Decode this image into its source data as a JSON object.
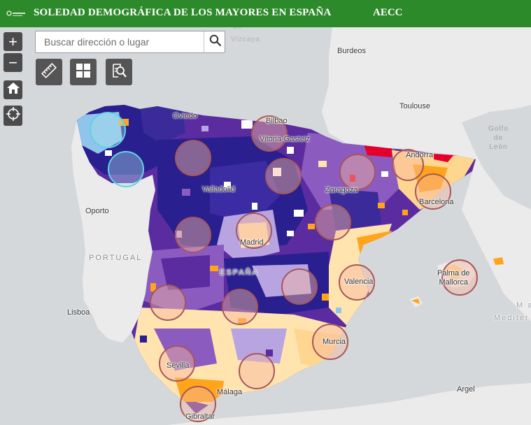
{
  "header": {
    "title": "SOLEDAD DEMOGRÁFICA DE LOS MAYORES EN ESPAÑA",
    "org": "AECC",
    "background_color": "#2d8a2a"
  },
  "controls": {
    "zoom_in": "+",
    "zoom_out": "−",
    "home_icon": "home-icon",
    "locate_icon": "crosshair-icon"
  },
  "search": {
    "placeholder": "Buscar dirección o lugar",
    "value": "",
    "icon": "search-icon"
  },
  "widgets": [
    {
      "name": "measure-button",
      "icon": "ruler-icon"
    },
    {
      "name": "layers-button",
      "icon": "grid-icon"
    },
    {
      "name": "query-button",
      "icon": "search-document-icon"
    }
  ],
  "map": {
    "labels": {
      "biscay_top": "de",
      "biscay": "Vizcaya",
      "burdeos": "Burdeos",
      "toulouse": "Toulouse",
      "golfo_1": "Golfo",
      "golfo_2": "de",
      "golfo_3": "León",
      "oviedo": "Oviedo",
      "bilbao": "Bilbao",
      "vitoria": "Vitoria-Gasteiz",
      "andorra": "Andorra",
      "valladolid": "Valladolid",
      "zaragoza": "Zaragoza",
      "barcelona": "Barcelona",
      "oporto": "Oporto",
      "portugal": "PORTUGAL",
      "madrid": "Madrid",
      "espana": "ESPAÑA",
      "palma_1": "Palma de",
      "palma_2": "Mallorca",
      "valencia": "Valencia",
      "lisboa": "Lisboa",
      "mar_1": "M a",
      "mar_2": "Mediter",
      "murcia": "Murcia",
      "sevilla": "Sevilla",
      "malaga": "Málaga",
      "gibraltar": "Gibraltar",
      "argel": "Argel"
    },
    "legend_colors": {
      "very_high": "#2a1f8f",
      "high": "#5a2ca0",
      "medium_high": "#8b5bc0",
      "medium": "#b7a4e0",
      "low": "#ffe4b0",
      "very_low": "#ffa41b",
      "extreme": "#e5002b",
      "light_blue": "#8fc4ec",
      "no_data": "#ffffff"
    },
    "circle_color": "#a5575a",
    "circle_fill": "#f6b9a0",
    "circle_highlight": "#5fd4e0"
  }
}
